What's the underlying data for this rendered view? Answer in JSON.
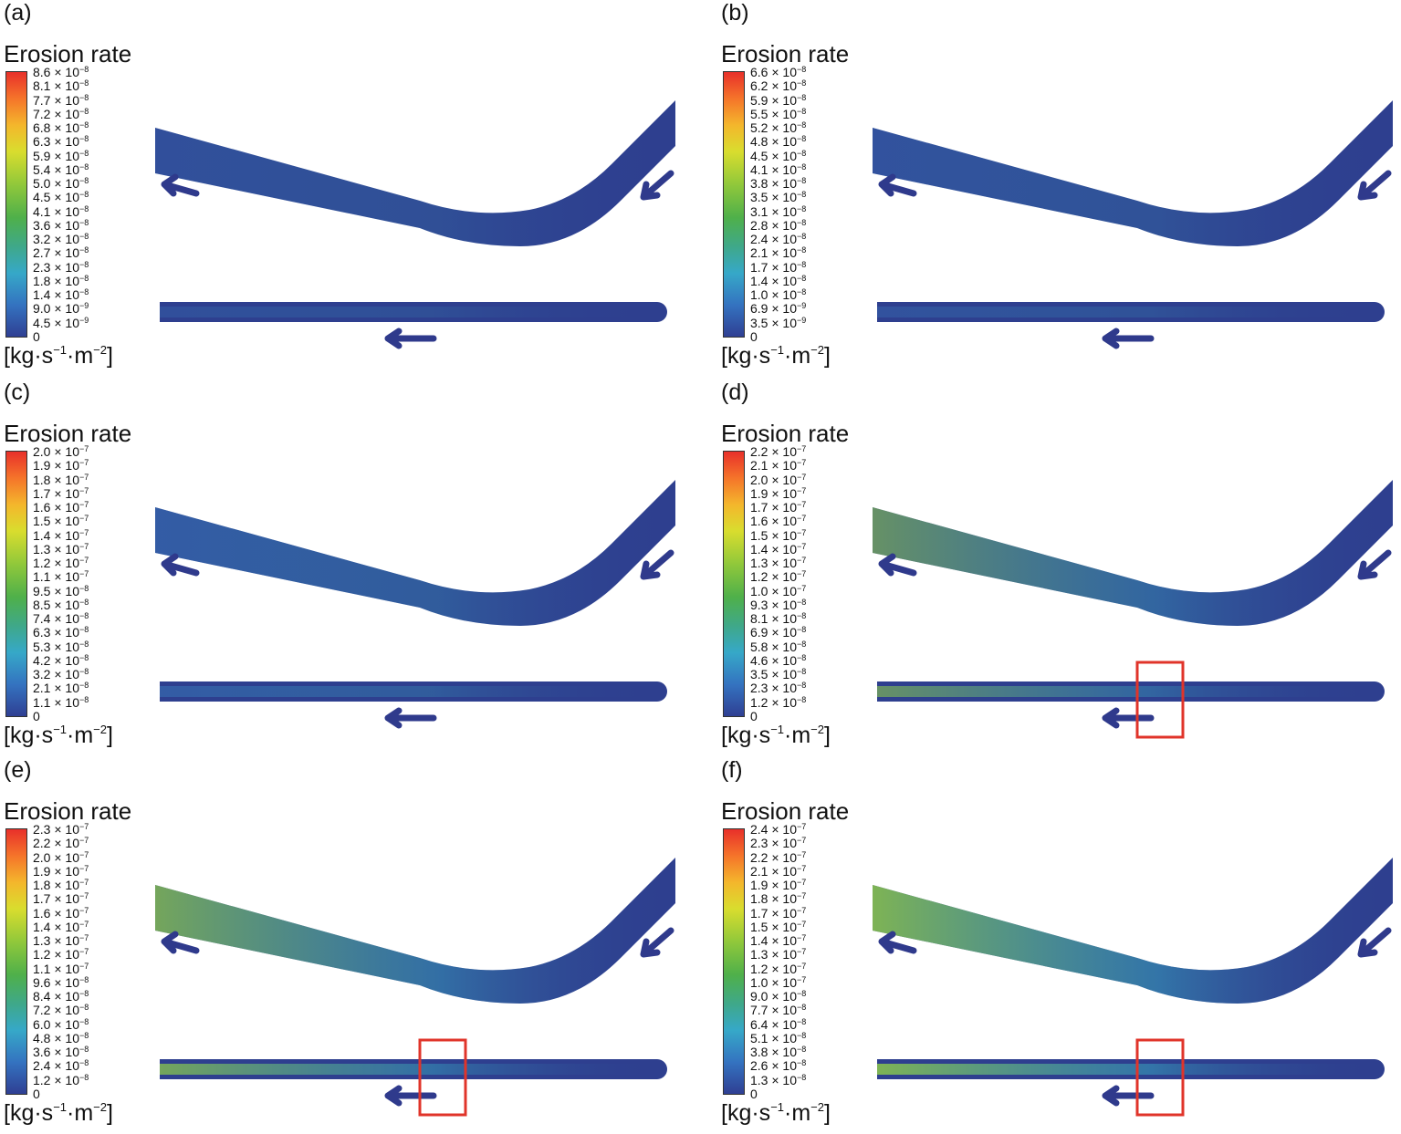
{
  "figure": {
    "colorbar_title": "Erosion rate",
    "unit": {
      "base": "[kg·s",
      "s_exp": "−1",
      "mid": "·m",
      "m_exp": "−2",
      "end": "]"
    },
    "colors": {
      "pipe": "#2e3f8f",
      "arrow": "#2f3a8c",
      "box": "#e0342a"
    },
    "panels": [
      {
        "id": "a",
        "label": "(a)",
        "highlight_box": false,
        "ticks": [
          {
            "m": "8.6",
            "e": "−8"
          },
          {
            "m": "8.1",
            "e": "−8"
          },
          {
            "m": "7.7",
            "e": "−8"
          },
          {
            "m": "7.2",
            "e": "−8"
          },
          {
            "m": "6.8",
            "e": "−8"
          },
          {
            "m": "6.3",
            "e": "−8"
          },
          {
            "m": "5.9",
            "e": "−8"
          },
          {
            "m": "5.4",
            "e": "−8"
          },
          {
            "m": "5.0",
            "e": "−8"
          },
          {
            "m": "4.5",
            "e": "−8"
          },
          {
            "m": "4.1",
            "e": "−8"
          },
          {
            "m": "3.6",
            "e": "−8"
          },
          {
            "m": "3.2",
            "e": "−8"
          },
          {
            "m": "2.7",
            "e": "−8"
          },
          {
            "m": "2.3",
            "e": "−8"
          },
          {
            "m": "1.8",
            "e": "−8"
          },
          {
            "m": "1.4",
            "e": "−8"
          },
          {
            "m": "9.0",
            "e": "−9"
          },
          {
            "m": "4.5",
            "e": "−9"
          },
          {
            "m": "0",
            "e": ""
          }
        ]
      },
      {
        "id": "b",
        "label": "(b)",
        "highlight_box": false,
        "ticks": [
          {
            "m": "6.6",
            "e": "−8"
          },
          {
            "m": "6.2",
            "e": "−8"
          },
          {
            "m": "5.9",
            "e": "−8"
          },
          {
            "m": "5.5",
            "e": "−8"
          },
          {
            "m": "5.2",
            "e": "−8"
          },
          {
            "m": "4.8",
            "e": "−8"
          },
          {
            "m": "4.5",
            "e": "−8"
          },
          {
            "m": "4.1",
            "e": "−8"
          },
          {
            "m": "3.8",
            "e": "−8"
          },
          {
            "m": "3.5",
            "e": "−8"
          },
          {
            "m": "3.1",
            "e": "−8"
          },
          {
            "m": "2.8",
            "e": "−8"
          },
          {
            "m": "2.4",
            "e": "−8"
          },
          {
            "m": "2.1",
            "e": "−8"
          },
          {
            "m": "1.7",
            "e": "−8"
          },
          {
            "m": "1.4",
            "e": "−8"
          },
          {
            "m": "1.0",
            "e": "−8"
          },
          {
            "m": "6.9",
            "e": "−9"
          },
          {
            "m": "3.5",
            "e": "−9"
          },
          {
            "m": "0",
            "e": ""
          }
        ]
      },
      {
        "id": "c",
        "label": "(c)",
        "highlight_box": false,
        "ticks": [
          {
            "m": "2.0",
            "e": "−7"
          },
          {
            "m": "1.9",
            "e": "−7"
          },
          {
            "m": "1.8",
            "e": "−7"
          },
          {
            "m": "1.7",
            "e": "−7"
          },
          {
            "m": "1.6",
            "e": "−7"
          },
          {
            "m": "1.5",
            "e": "−7"
          },
          {
            "m": "1.4",
            "e": "−7"
          },
          {
            "m": "1.3",
            "e": "−7"
          },
          {
            "m": "1.2",
            "e": "−7"
          },
          {
            "m": "1.1",
            "e": "−7"
          },
          {
            "m": "9.5",
            "e": "−8"
          },
          {
            "m": "8.5",
            "e": "−8"
          },
          {
            "m": "7.4",
            "e": "−8"
          },
          {
            "m": "6.3",
            "e": "−8"
          },
          {
            "m": "5.3",
            "e": "−8"
          },
          {
            "m": "4.2",
            "e": "−8"
          },
          {
            "m": "3.2",
            "e": "−8"
          },
          {
            "m": "2.1",
            "e": "−8"
          },
          {
            "m": "1.1",
            "e": "−8"
          },
          {
            "m": "0",
            "e": ""
          }
        ]
      },
      {
        "id": "d",
        "label": "(d)",
        "highlight_box": true,
        "ticks": [
          {
            "m": "2.2",
            "e": "−7"
          },
          {
            "m": "2.1",
            "e": "−7"
          },
          {
            "m": "2.0",
            "e": "−7"
          },
          {
            "m": "1.9",
            "e": "−7"
          },
          {
            "m": "1.7",
            "e": "−7"
          },
          {
            "m": "1.6",
            "e": "−7"
          },
          {
            "m": "1.5",
            "e": "−7"
          },
          {
            "m": "1.4",
            "e": "−7"
          },
          {
            "m": "1.3",
            "e": "−7"
          },
          {
            "m": "1.2",
            "e": "−7"
          },
          {
            "m": "1.0",
            "e": "−7"
          },
          {
            "m": "9.3",
            "e": "−8"
          },
          {
            "m": "8.1",
            "e": "−8"
          },
          {
            "m": "6.9",
            "e": "−8"
          },
          {
            "m": "5.8",
            "e": "−8"
          },
          {
            "m": "4.6",
            "e": "−8"
          },
          {
            "m": "3.5",
            "e": "−8"
          },
          {
            "m": "2.3",
            "e": "−8"
          },
          {
            "m": "1.2",
            "e": "−8"
          },
          {
            "m": "0",
            "e": ""
          }
        ]
      },
      {
        "id": "e",
        "label": "(e)",
        "highlight_box": true,
        "ticks": [
          {
            "m": "2.3",
            "e": "−7"
          },
          {
            "m": "2.2",
            "e": "−7"
          },
          {
            "m": "2.0",
            "e": "−7"
          },
          {
            "m": "1.9",
            "e": "−7"
          },
          {
            "m": "1.8",
            "e": "−7"
          },
          {
            "m": "1.7",
            "e": "−7"
          },
          {
            "m": "1.6",
            "e": "−7"
          },
          {
            "m": "1.4",
            "e": "−7"
          },
          {
            "m": "1.3",
            "e": "−7"
          },
          {
            "m": "1.2",
            "e": "−7"
          },
          {
            "m": "1.1",
            "e": "−7"
          },
          {
            "m": "9.6",
            "e": "−8"
          },
          {
            "m": "8.4",
            "e": "−8"
          },
          {
            "m": "7.2",
            "e": "−8"
          },
          {
            "m": "6.0",
            "e": "−8"
          },
          {
            "m": "4.8",
            "e": "−8"
          },
          {
            "m": "3.6",
            "e": "−8"
          },
          {
            "m": "2.4",
            "e": "−8"
          },
          {
            "m": "1.2",
            "e": "−8"
          },
          {
            "m": "0",
            "e": ""
          }
        ]
      },
      {
        "id": "f",
        "label": "(f)",
        "highlight_box": true,
        "ticks": [
          {
            "m": "2.4",
            "e": "−7"
          },
          {
            "m": "2.3",
            "e": "−7"
          },
          {
            "m": "2.2",
            "e": "−7"
          },
          {
            "m": "2.1",
            "e": "−7"
          },
          {
            "m": "1.9",
            "e": "−7"
          },
          {
            "m": "1.8",
            "e": "−7"
          },
          {
            "m": "1.7",
            "e": "−7"
          },
          {
            "m": "1.5",
            "e": "−7"
          },
          {
            "m": "1.4",
            "e": "−7"
          },
          {
            "m": "1.3",
            "e": "−7"
          },
          {
            "m": "1.2",
            "e": "−7"
          },
          {
            "m": "1.0",
            "e": "−7"
          },
          {
            "m": "9.0",
            "e": "−8"
          },
          {
            "m": "7.7",
            "e": "−8"
          },
          {
            "m": "6.4",
            "e": "−8"
          },
          {
            "m": "5.1",
            "e": "−8"
          },
          {
            "m": "3.8",
            "e": "−8"
          },
          {
            "m": "2.6",
            "e": "−8"
          },
          {
            "m": "1.3",
            "e": "−8"
          },
          {
            "m": "0",
            "e": ""
          }
        ]
      }
    ]
  }
}
